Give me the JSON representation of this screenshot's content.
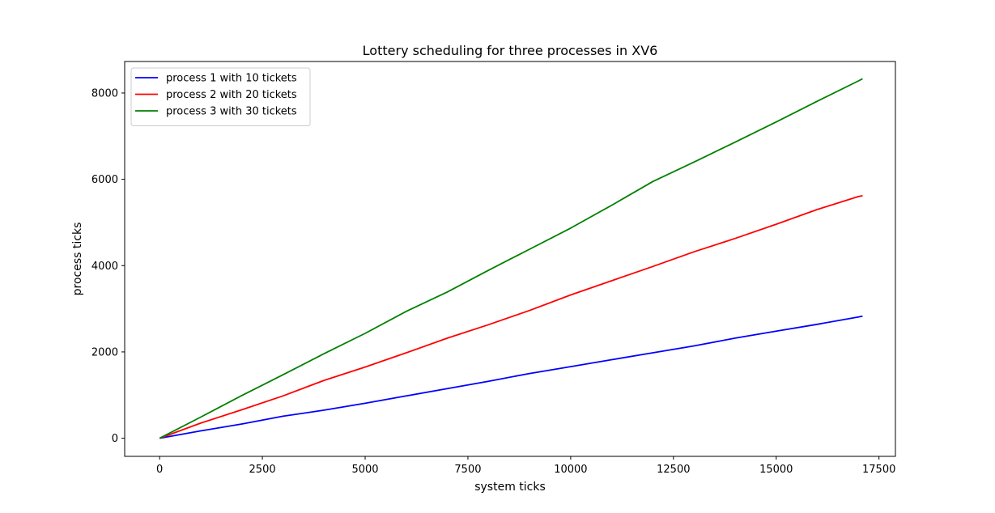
{
  "chart_data": {
    "type": "line",
    "title": "Lottery scheduling for three processes in XV6",
    "xlabel": "system ticks",
    "ylabel": "process ticks",
    "xlim": [
      -850,
      17900
    ],
    "ylim": [
      -420,
      8730
    ],
    "xticks": [
      0,
      2500,
      5000,
      7500,
      10000,
      12500,
      15000,
      17500
    ],
    "yticks": [
      0,
      2000,
      4000,
      6000,
      8000
    ],
    "xtick_labels": [
      "0",
      "2500",
      "5000",
      "7500",
      "10000",
      "12500",
      "15000",
      "17500"
    ],
    "ytick_labels": [
      "0",
      "2000",
      "4000",
      "6000",
      "8000"
    ],
    "grid": false,
    "legend_position": "upper-left",
    "series": [
      {
        "name": "process 1 with 10 tickets",
        "color": "#0000ff",
        "x": [
          0,
          1000,
          2000,
          3000,
          4000,
          5000,
          6000,
          7000,
          8000,
          9000,
          10000,
          11000,
          12000,
          13000,
          14000,
          15000,
          16000,
          17000,
          17100
        ],
        "y": [
          0,
          170,
          330,
          510,
          650,
          810,
          980,
          1150,
          1320,
          1500,
          1660,
          1820,
          1980,
          2140,
          2320,
          2480,
          2640,
          2810,
          2830
        ]
      },
      {
        "name": "process 2 with 20 tickets",
        "color": "#ff0000",
        "x": [
          0,
          1000,
          2000,
          3000,
          4000,
          5000,
          6000,
          7000,
          8000,
          9000,
          10000,
          11000,
          12000,
          13000,
          14000,
          15000,
          16000,
          17000,
          17100
        ],
        "y": [
          0,
          350,
          660,
          980,
          1340,
          1650,
          1980,
          2320,
          2630,
          2960,
          3320,
          3650,
          3980,
          4320,
          4630,
          4960,
          5300,
          5600,
          5620
        ]
      },
      {
        "name": "process 3 with 30 tickets",
        "color": "#008000",
        "x": [
          0,
          1000,
          2000,
          3000,
          4000,
          5000,
          6000,
          7000,
          8000,
          9000,
          10000,
          11000,
          12000,
          13000,
          14000,
          15000,
          16000,
          17000,
          17100
        ],
        "y": [
          0,
          490,
          990,
          1470,
          1960,
          2430,
          2940,
          3390,
          3890,
          4380,
          4870,
          5400,
          5950,
          6400,
          6860,
          7330,
          7810,
          8280,
          8330
        ]
      }
    ]
  }
}
